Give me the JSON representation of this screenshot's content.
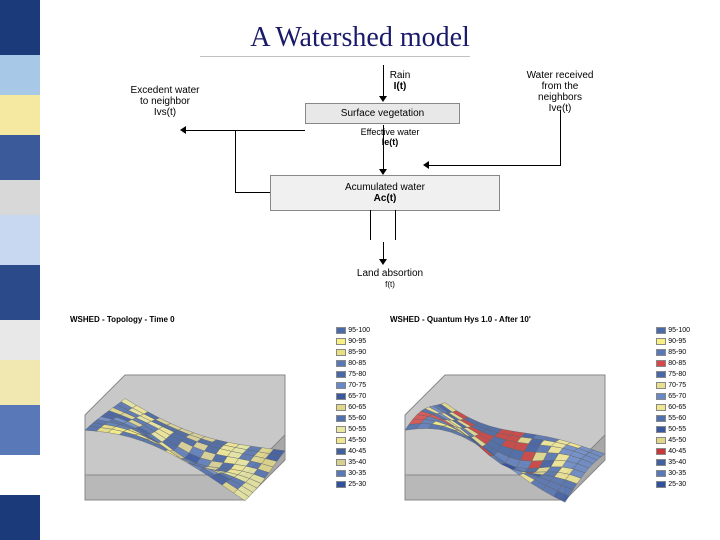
{
  "title": "A Watershed model",
  "sidebar_colors": [
    "#1a3a7a",
    "#a8c8e8",
    "#f5e8a0",
    "#3a5a9a",
    "#d8d8d8",
    "#c8d8f0",
    "#2a4a8a",
    "#e8e8e8",
    "#f0e8b0",
    "#5878b8",
    "#ffffff",
    "#1a3a7a"
  ],
  "sidebar_heights": [
    55,
    40,
    40,
    45,
    35,
    50,
    55,
    40,
    45,
    50,
    40,
    45
  ],
  "flowchart": {
    "rain": {
      "label": "Rain",
      "var": "I(t)"
    },
    "excedent": {
      "label": "Excedent water\nto neighbor",
      "var": "Ivs(t)"
    },
    "received": {
      "label": "Water received\nfrom the\nneighbors",
      "var": "Ive(t)"
    },
    "surface_veg": "Surface vegetation",
    "effective": {
      "label": "Effective water",
      "var": "Ie(t)"
    },
    "accumulated": {
      "label": "Acumulated water",
      "var": "Ac(t)"
    },
    "absorption": {
      "label": "Land absortion",
      "var": "f(t)"
    }
  },
  "surfaces": {
    "left": {
      "title": "WSHED - Topology - Time 0",
      "legend": [
        {
          "range": "95-100",
          "color": "#4a6aa8"
        },
        {
          "range": "90-95",
          "color": "#f8f080"
        },
        {
          "range": "85-90",
          "color": "#e8e080"
        },
        {
          "range": "80-85",
          "color": "#5878b8"
        },
        {
          "range": "75-80",
          "color": "#4868a8"
        },
        {
          "range": "70-75",
          "color": "#6888c8"
        },
        {
          "range": "65-70",
          "color": "#3858a0"
        },
        {
          "range": "60-65",
          "color": "#e0d888"
        },
        {
          "range": "55-60",
          "color": "#5070b0"
        },
        {
          "range": "50-55",
          "color": "#e8e8a0"
        },
        {
          "range": "45-50",
          "color": "#f0e890"
        },
        {
          "range": "40-45",
          "color": "#4060a0"
        },
        {
          "range": "35-40",
          "color": "#d8d090"
        },
        {
          "range": "30-35",
          "color": "#5878b8"
        },
        {
          "range": "25-30",
          "color": "#3050a0"
        }
      ]
    },
    "right": {
      "title": "WSHED - Quantum Hys 1.0 - After 10'",
      "legend": [
        {
          "range": "95-100",
          "color": "#4a6aa8"
        },
        {
          "range": "90-95",
          "color": "#f8f080"
        },
        {
          "range": "85-90",
          "color": "#5878b8"
        },
        {
          "range": "80-85",
          "color": "#d84848"
        },
        {
          "range": "75-80",
          "color": "#4868a8"
        },
        {
          "range": "70-75",
          "color": "#e8e090"
        },
        {
          "range": "65-70",
          "color": "#6888c8"
        },
        {
          "range": "60-65",
          "color": "#f0e890"
        },
        {
          "range": "55-60",
          "color": "#5070b0"
        },
        {
          "range": "50-55",
          "color": "#3858a0"
        },
        {
          "range": "45-50",
          "color": "#e0d888"
        },
        {
          "range": "40-45",
          "color": "#c83838"
        },
        {
          "range": "35-40",
          "color": "#4060a0"
        },
        {
          "range": "30-35",
          "color": "#5878b8"
        },
        {
          "range": "25-30",
          "color": "#3050a0"
        }
      ]
    },
    "block_fill": "#c8c8c8",
    "block_stroke": "#888888",
    "grid_stroke": "#999999"
  }
}
